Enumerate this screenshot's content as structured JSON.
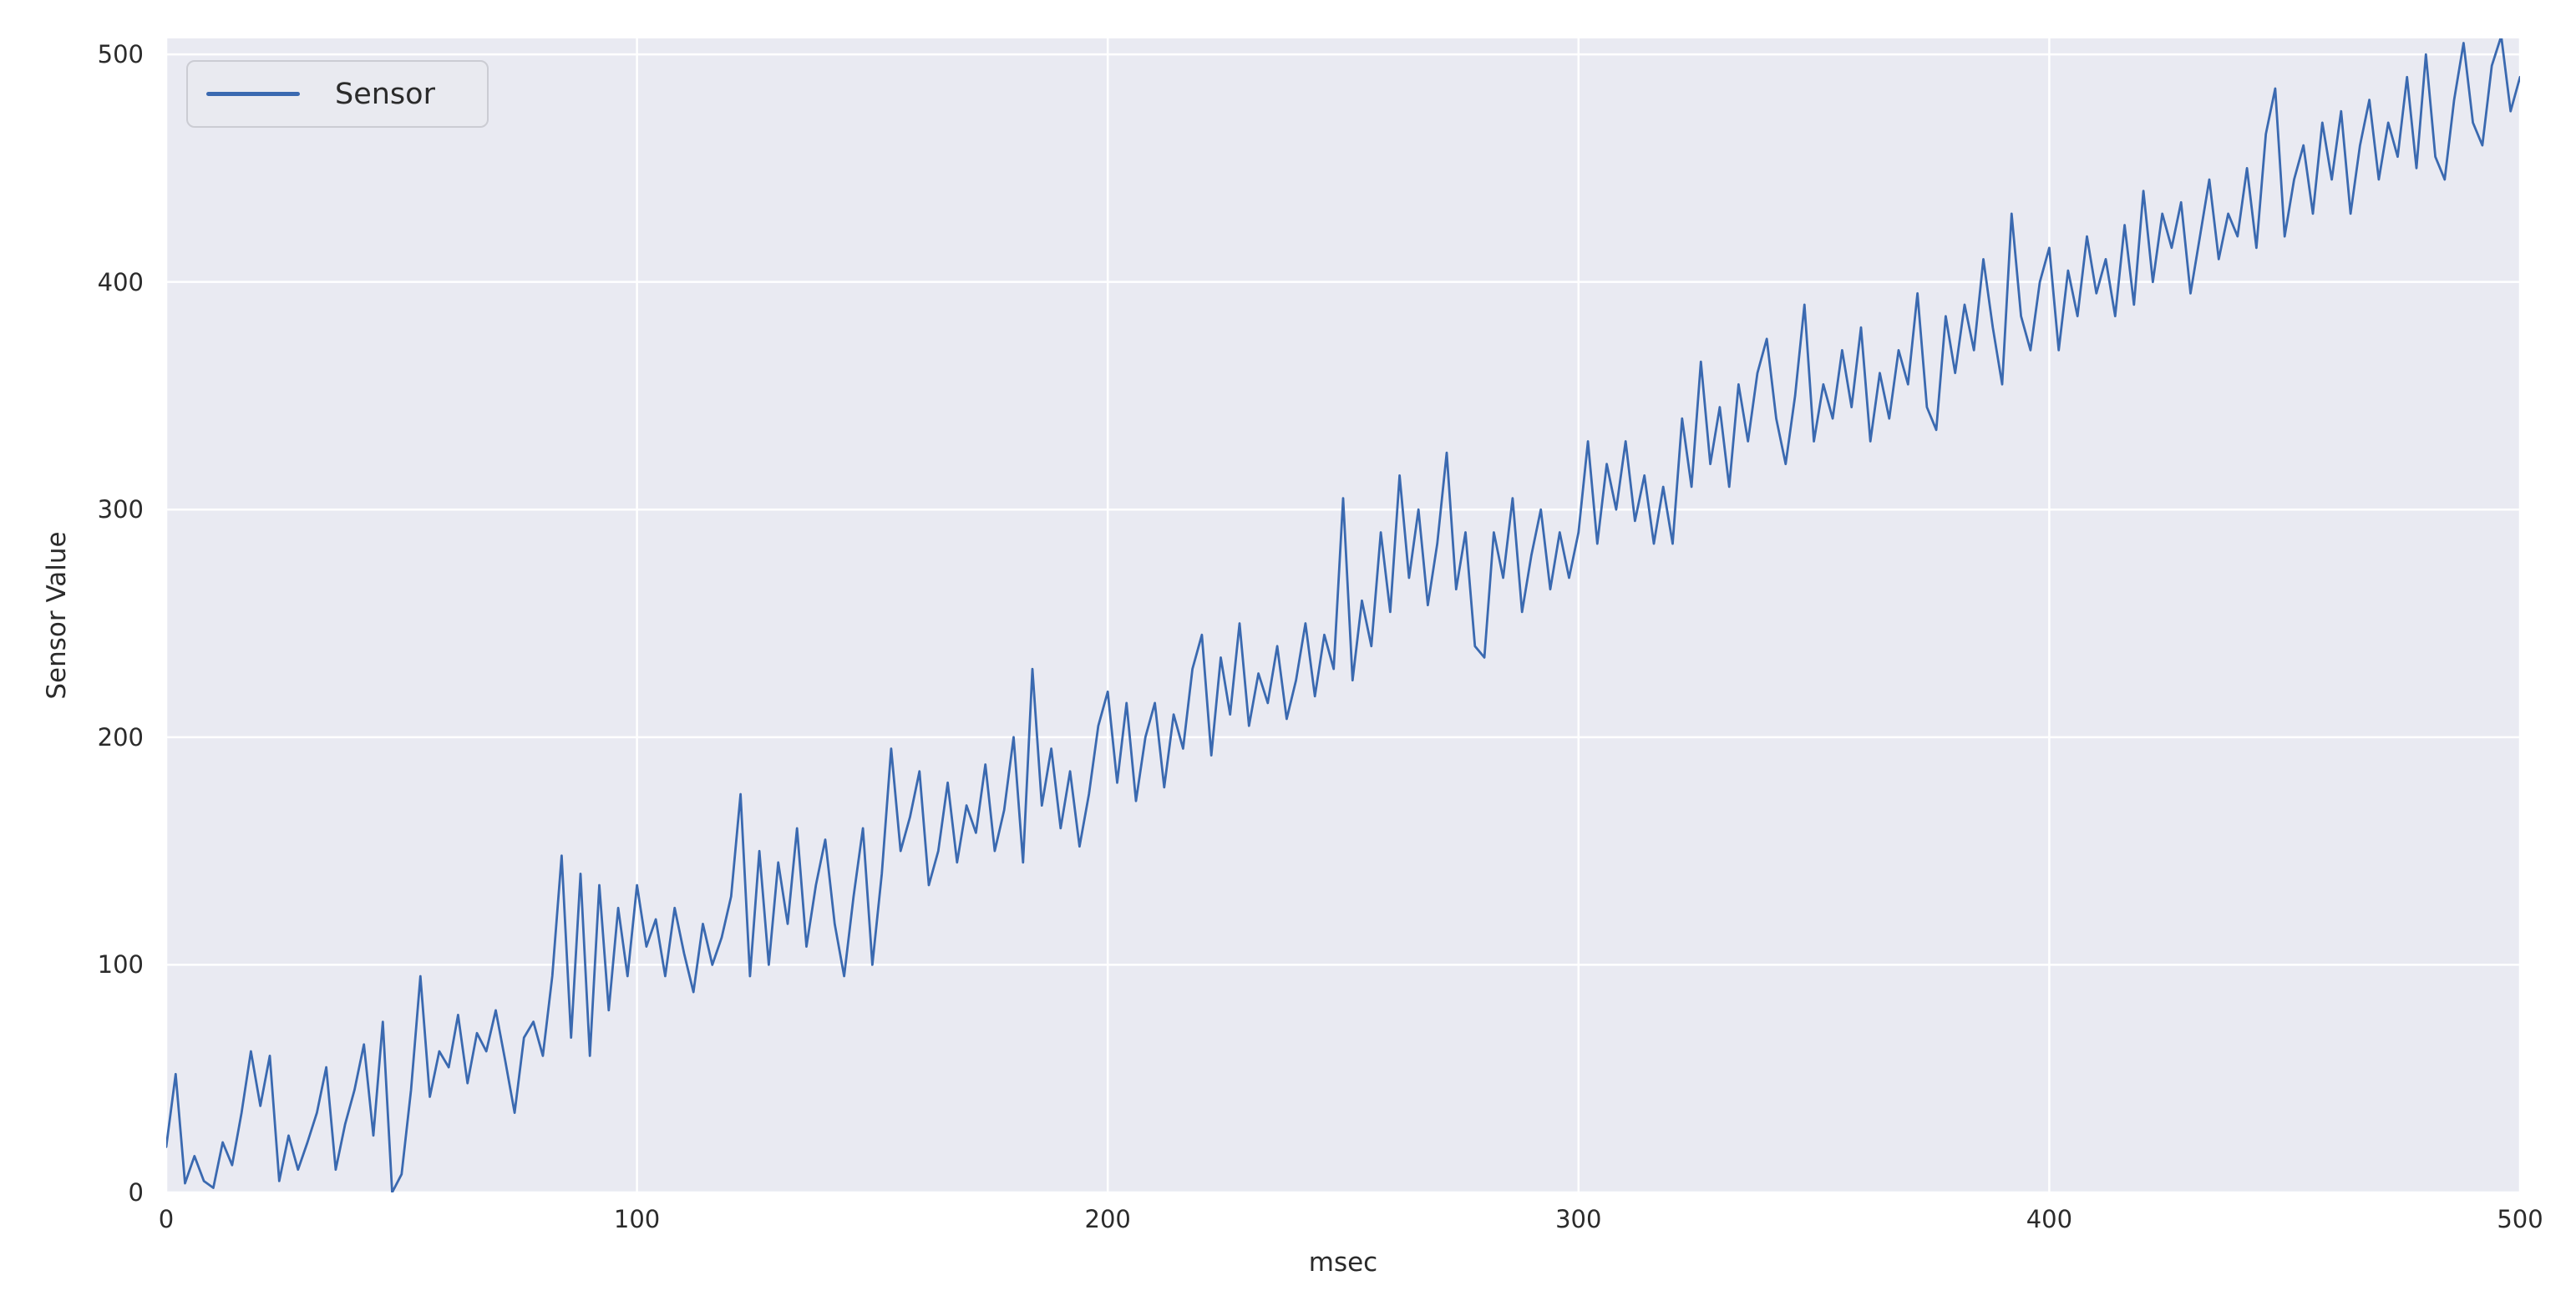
{
  "figure": {
    "background": "#ffffff",
    "text_color": "#2b2b2b"
  },
  "legend": {
    "label": "Sensor",
    "position": "upper left",
    "swatch_color": "#3a69b0"
  },
  "axes": {
    "xlabel": "msec",
    "ylabel": "Sensor Value"
  },
  "chart_data": {
    "type": "line",
    "title": "",
    "xlabel": "msec",
    "ylabel": "Sensor Value",
    "xlim": [
      0,
      500
    ],
    "ylim": [
      0,
      507
    ],
    "x_ticks": [
      0,
      100,
      200,
      300,
      400,
      500
    ],
    "y_ticks": [
      0,
      100,
      200,
      300,
      400,
      500
    ],
    "grid": true,
    "legend_position": "upper left",
    "style": {
      "axes_background": "#e9eaf2",
      "grid_color": "#ffffff",
      "grid_width": 2.5,
      "line_width": 2.8,
      "tick_color": "#2b2b2b"
    },
    "series": [
      {
        "name": "Sensor",
        "color": "#3a69b0",
        "x_start": 0,
        "x_step": 2,
        "y": [
          20,
          52,
          4,
          16,
          5,
          2,
          22,
          12,
          35,
          62,
          38,
          60,
          5,
          25,
          10,
          22,
          35,
          55,
          10,
          30,
          45,
          65,
          25,
          75,
          0,
          8,
          45,
          95,
          42,
          62,
          55,
          78,
          48,
          70,
          62,
          80,
          58,
          35,
          68,
          75,
          60,
          95,
          148,
          68,
          140,
          60,
          135,
          80,
          125,
          95,
          135,
          108,
          120,
          95,
          125,
          105,
          88,
          118,
          100,
          112,
          130,
          175,
          95,
          150,
          100,
          145,
          118,
          160,
          108,
          135,
          155,
          118,
          95,
          130,
          160,
          100,
          140,
          195,
          150,
          165,
          185,
          135,
          150,
          180,
          145,
          170,
          158,
          188,
          150,
          168,
          200,
          145,
          230,
          170,
          195,
          160,
          185,
          152,
          175,
          205,
          220,
          180,
          215,
          172,
          200,
          215,
          178,
          210,
          195,
          230,
          245,
          192,
          235,
          210,
          250,
          205,
          228,
          215,
          240,
          208,
          225,
          250,
          218,
          245,
          230,
          305,
          225,
          260,
          240,
          290,
          255,
          315,
          270,
          300,
          258,
          285,
          325,
          265,
          290,
          240,
          235,
          290,
          270,
          305,
          255,
          280,
          300,
          265,
          290,
          270,
          290,
          330,
          285,
          320,
          300,
          330,
          295,
          315,
          285,
          310,
          285,
          340,
          310,
          365,
          320,
          345,
          310,
          355,
          330,
          360,
          375,
          340,
          320,
          350,
          390,
          330,
          355,
          340,
          370,
          345,
          380,
          330,
          360,
          340,
          370,
          355,
          395,
          345,
          335,
          385,
          360,
          390,
          370,
          410,
          380,
          355,
          430,
          385,
          370,
          400,
          415,
          370,
          405,
          385,
          420,
          395,
          410,
          385,
          425,
          390,
          440,
          400,
          430,
          415,
          435,
          395,
          420,
          445,
          410,
          430,
          420,
          450,
          415,
          465,
          485,
          420,
          445,
          460,
          430,
          470,
          445,
          475,
          430,
          460,
          480,
          445,
          470,
          455,
          490,
          450,
          500,
          455,
          445,
          480,
          505,
          470,
          460,
          495,
          508,
          475,
          490
        ]
      }
    ]
  }
}
